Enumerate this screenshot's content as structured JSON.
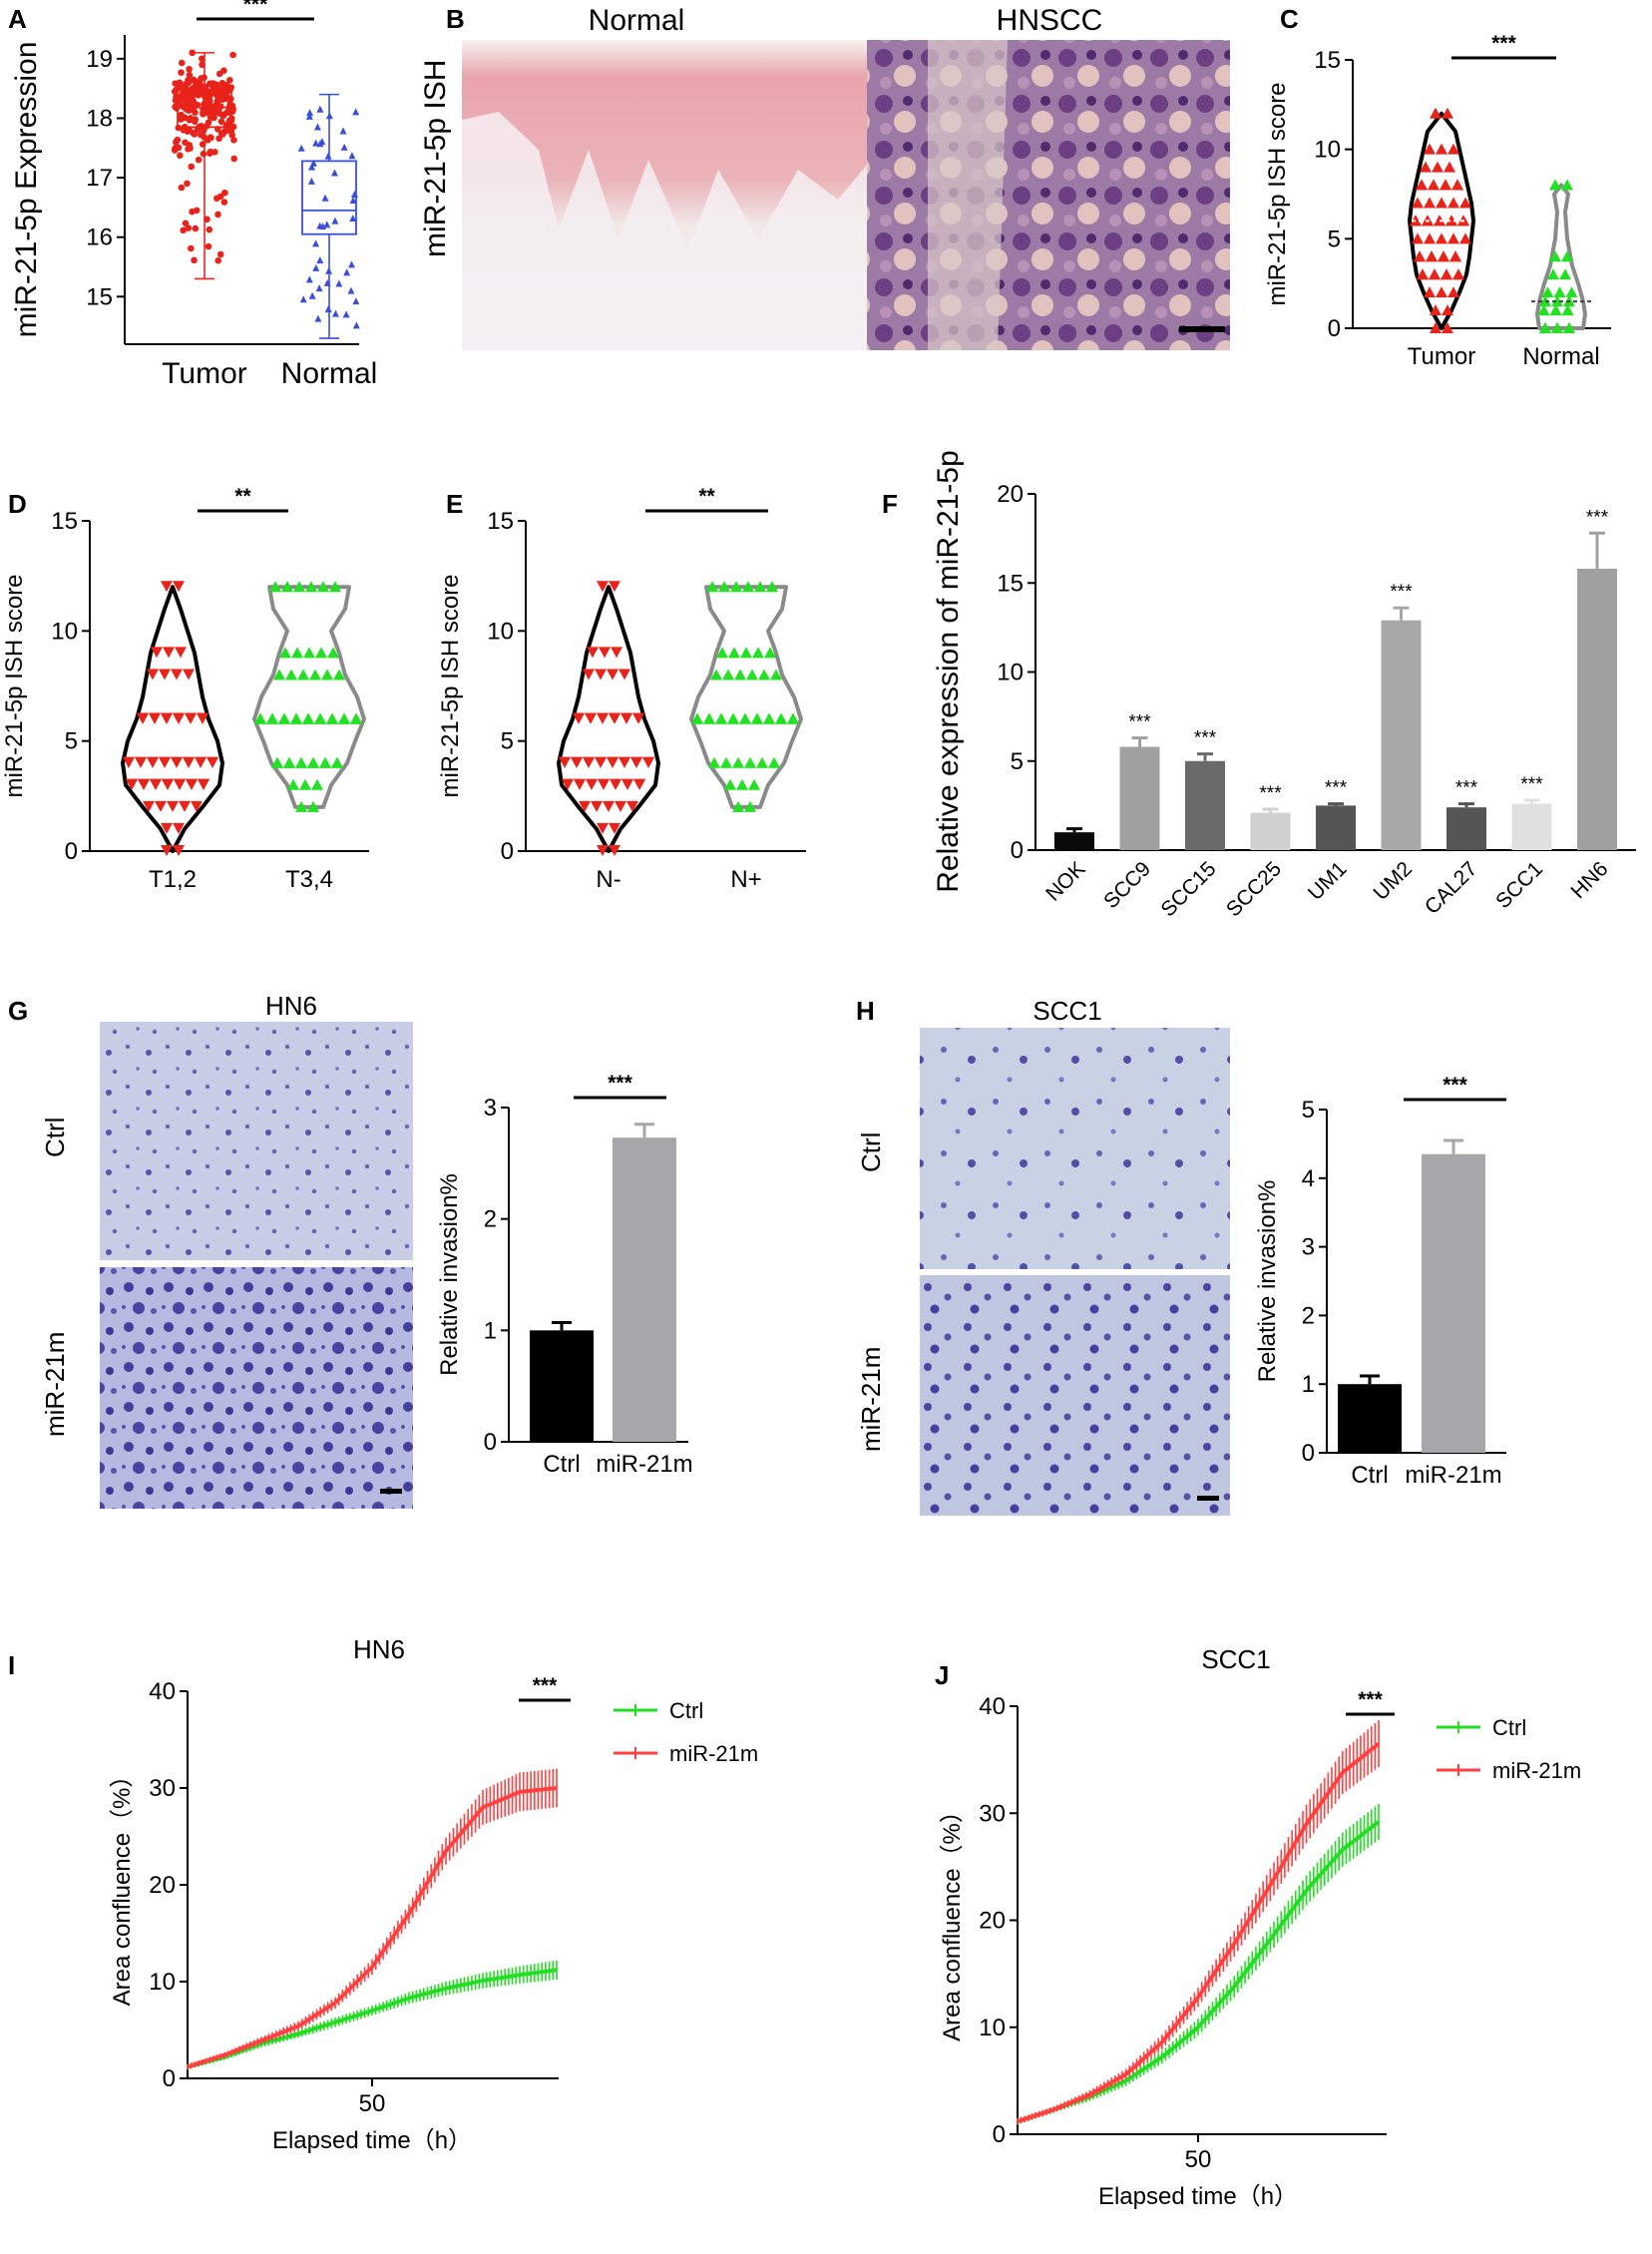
{
  "colors": {
    "red": "#e8231a",
    "blue": "#3a4fd8",
    "green": "#22e022",
    "black": "#000000",
    "gray": "#a8a8ae",
    "curve_red": "#ff4040",
    "curve_green": "#22dd22"
  },
  "panels": {
    "A": "A",
    "B": "B",
    "C": "C",
    "D": "D",
    "E": "E",
    "F": "F",
    "G": "G",
    "H": "H",
    "I": "I",
    "J": "J"
  },
  "micrographs": {
    "B": {
      "ylabel": "miR-21-5p ISH",
      "left_title": "Normal",
      "right_title": "HNSCC"
    },
    "G": {
      "title": "HN6",
      "top_label": "Ctrl",
      "bottom_label": "miR-21m"
    },
    "H": {
      "title": "SCC1",
      "top_label": "Ctrl",
      "bottom_label": "miR-21m"
    }
  },
  "chart_data": [
    {
      "id": "A",
      "type": "box",
      "ylabel": "miR-21-5p  Expression",
      "categories": [
        "Tumor",
        "Normal"
      ],
      "ylim": [
        14.2,
        19.4
      ],
      "yticks": [
        15,
        16,
        17,
        18,
        19
      ],
      "boxes": [
        {
          "name": "Tumor",
          "q1": 17.85,
          "median": 18.18,
          "q3": 18.48,
          "whisker_low": 15.3,
          "whisker_high": 19.1,
          "color": "#e8231a"
        },
        {
          "name": "Normal",
          "q1": 16.05,
          "median": 16.45,
          "q3": 17.28,
          "whisker_low": 14.3,
          "whisker_high": 18.4,
          "color": "#3a4fd8"
        }
      ],
      "significance": "***"
    },
    {
      "id": "C",
      "type": "violin",
      "ylabel": "miR-21-5p ISH score",
      "categories": [
        "Tumor",
        "Normal"
      ],
      "ylim": [
        0,
        15
      ],
      "yticks": [
        0,
        5,
        10,
        15
      ],
      "series": [
        {
          "name": "Tumor",
          "min": 0,
          "max": 12,
          "median": 6,
          "points": [
            12,
            10,
            9,
            8,
            8,
            7,
            6,
            6,
            6,
            5,
            4,
            4,
            3,
            3,
            2,
            1,
            0
          ]
        },
        {
          "name": "Normal",
          "min": 0,
          "max": 8,
          "median": 1.5,
          "points": [
            8,
            4,
            3,
            2,
            1.5,
            1,
            1,
            0,
            0,
            0
          ]
        }
      ],
      "significance": "***"
    },
    {
      "id": "D",
      "type": "violin",
      "ylabel": "miR-21-5p ISH score",
      "categories": [
        "T1,2",
        "T3,4"
      ],
      "ylim": [
        0,
        15
      ],
      "yticks": [
        0,
        5,
        10,
        15
      ],
      "series": [
        {
          "name": "T1,2",
          "min": 0,
          "max": 12,
          "points": [
            12,
            9,
            8,
            6,
            6,
            6,
            4,
            4,
            3,
            3,
            3,
            2,
            1,
            0
          ]
        },
        {
          "name": "T3,4",
          "min": 2,
          "max": 12,
          "points": [
            12,
            9,
            8,
            6,
            6,
            6,
            6,
            4,
            4,
            3,
            2
          ]
        }
      ],
      "significance": "**"
    },
    {
      "id": "E",
      "type": "violin",
      "ylabel": "miR-21-5p ISH score",
      "categories": [
        "N-",
        "N+"
      ],
      "ylim": [
        0,
        15
      ],
      "yticks": [
        0,
        5,
        10,
        15
      ],
      "series": [
        {
          "name": "N-",
          "min": 0,
          "max": 12,
          "points": [
            12,
            9,
            8,
            6,
            6,
            4,
            4,
            3,
            3,
            2,
            1,
            0
          ]
        },
        {
          "name": "N+",
          "min": 2,
          "max": 12,
          "points": [
            12,
            9,
            8,
            6,
            6,
            6,
            4,
            3,
            2
          ]
        }
      ],
      "significance": "**"
    },
    {
      "id": "F",
      "type": "bar",
      "ylabel": "Relative expression of miR-21-5p",
      "categories": [
        "NOK",
        "SCC9",
        "SCC15",
        "SCC25",
        "UM1",
        "UM2",
        "CAL27",
        "SCC1",
        "HN6"
      ],
      "values": [
        1.0,
        5.8,
        5.0,
        2.1,
        2.5,
        12.9,
        2.4,
        2.6,
        15.8
      ],
      "errors": [
        0.2,
        0.5,
        0.4,
        0.2,
        0.1,
        0.7,
        0.2,
        0.2,
        2.0
      ],
      "fills": [
        "#0a0a0a",
        "#a0a0a0",
        "#6a6a6a",
        "#d0d0d0",
        "#555555",
        "#a8a8a8",
        "#555555",
        "#e0e0e0",
        "#a0a0a0"
      ],
      "significance": [
        "",
        "***",
        "***",
        "***",
        "***",
        "***",
        "***",
        "***",
        "***"
      ],
      "ylim": [
        0,
        20
      ],
      "yticks": [
        0,
        5,
        10,
        15,
        20
      ]
    },
    {
      "id": "G",
      "type": "bar",
      "ylabel": "Relative invasion%",
      "categories": [
        "Ctrl",
        "miR-21m"
      ],
      "values": [
        1.0,
        2.73
      ],
      "errors": [
        0.07,
        0.12
      ],
      "fills": [
        "#000000",
        "#a6a6ab"
      ],
      "ylim": [
        0,
        3
      ],
      "yticks": [
        0,
        1,
        2,
        3
      ],
      "significance": "***"
    },
    {
      "id": "H",
      "type": "bar",
      "ylabel": "Relative invasion%",
      "categories": [
        "Ctrl",
        "miR-21m"
      ],
      "values": [
        1.0,
        4.35
      ],
      "errors": [
        0.12,
        0.2
      ],
      "fills": [
        "#000000",
        "#a6a6ab"
      ],
      "ylim": [
        0,
        5
      ],
      "yticks": [
        0,
        1,
        2,
        3,
        4,
        5
      ],
      "significance": "***"
    },
    {
      "id": "I",
      "type": "line",
      "title": "HN6",
      "xlabel": "Elapsed time（h）",
      "ylabel": "Area confluence（%）",
      "xlim": [
        0,
        100
      ],
      "xticks": [
        50
      ],
      "ylim": [
        0,
        40
      ],
      "yticks": [
        0,
        10,
        20,
        30,
        40
      ],
      "series": [
        {
          "name": "Ctrl",
          "color": "#22dd22",
          "x": [
            0,
            10,
            20,
            30,
            40,
            50,
            60,
            70,
            80,
            90,
            100
          ],
          "y": [
            1.2,
            2.2,
            3.6,
            4.6,
            5.8,
            7.0,
            8.3,
            9.3,
            10.1,
            10.7,
            11.2
          ],
          "err": [
            0.3,
            0.3,
            0.4,
            0.4,
            0.5,
            0.5,
            0.6,
            0.7,
            0.8,
            0.9,
            1.0
          ]
        },
        {
          "name": "miR-21m",
          "color": "#ff4040",
          "x": [
            0,
            10,
            20,
            30,
            40,
            50,
            60,
            70,
            80,
            90,
            100
          ],
          "y": [
            1.2,
            2.4,
            3.9,
            5.4,
            7.8,
            11.5,
            17.0,
            23.5,
            28.0,
            29.6,
            30.0
          ],
          "err": [
            0.3,
            0.3,
            0.4,
            0.5,
            0.6,
            0.8,
            1.0,
            1.4,
            1.8,
            2.0,
            2.0
          ]
        }
      ],
      "significance": "***"
    },
    {
      "id": "J",
      "type": "line",
      "title": "SCC1",
      "xlabel": "Elapsed time（h）",
      "ylabel": "Area confluence（%）",
      "xlim": [
        0,
        100
      ],
      "xticks": [
        50
      ],
      "ylim": [
        0,
        40
      ],
      "yticks": [
        0,
        10,
        20,
        30,
        40
      ],
      "series": [
        {
          "name": "Ctrl",
          "color": "#22dd22",
          "x": [
            0,
            10,
            20,
            30,
            40,
            50,
            60,
            70,
            80,
            90,
            100
          ],
          "y": [
            1.2,
            2.3,
            3.5,
            5.0,
            7.2,
            10.0,
            13.8,
            18.2,
            22.8,
            26.6,
            29.2
          ],
          "err": [
            0.3,
            0.3,
            0.4,
            0.5,
            0.6,
            0.8,
            1.0,
            1.2,
            1.4,
            1.6,
            1.7
          ]
        },
        {
          "name": "miR-21m",
          "color": "#ff4040",
          "x": [
            0,
            10,
            20,
            30,
            40,
            50,
            60,
            70,
            80,
            90,
            100
          ],
          "y": [
            1.2,
            2.3,
            3.7,
            5.6,
            8.6,
            12.8,
            17.8,
            23.3,
            29.0,
            33.8,
            36.5
          ],
          "err": [
            0.3,
            0.3,
            0.4,
            0.5,
            0.7,
            0.9,
            1.2,
            1.5,
            1.8,
            2.0,
            2.2
          ]
        }
      ],
      "significance": "***"
    }
  ]
}
